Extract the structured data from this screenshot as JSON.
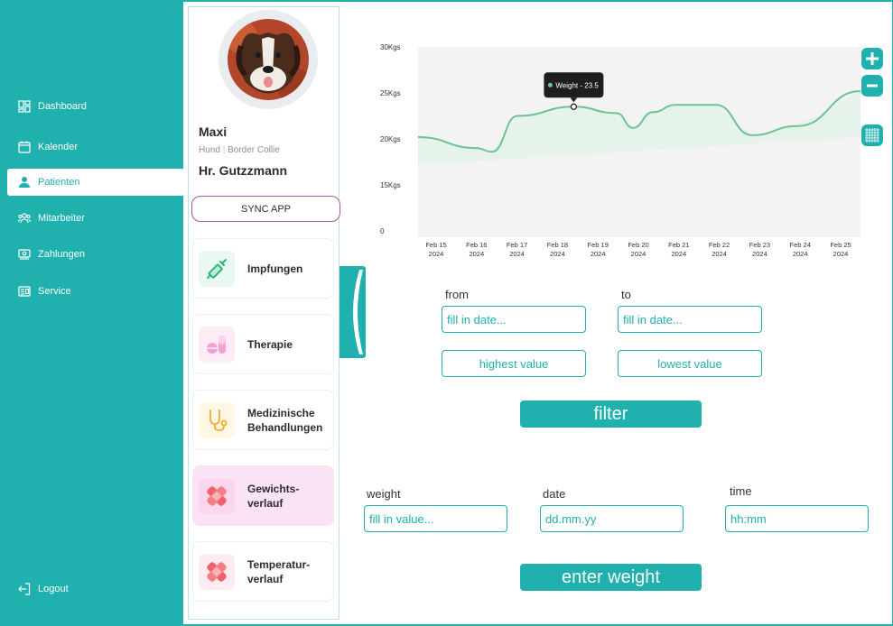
{
  "nav": {
    "items": [
      {
        "label": "Dashboard",
        "icon": "dashboard-icon"
      },
      {
        "label": "Kalender",
        "icon": "calendar-icon"
      },
      {
        "label": "Patienten",
        "icon": "patient-icon",
        "active": true
      },
      {
        "label": "Mitarbeiter",
        "icon": "staff-icon"
      },
      {
        "label": "Zahlungen",
        "icon": "payment-icon"
      },
      {
        "label": "Service",
        "icon": "service-icon"
      }
    ],
    "logout": "Logout"
  },
  "patient": {
    "name": "Maxi",
    "species": "Hund",
    "separator": "|",
    "breed": "Border Collie",
    "owner": "Hr. Gutzzmann",
    "sync_label": "SYNC APP"
  },
  "menu_cards": [
    {
      "label": "Impfungen",
      "icon": "syringe-icon"
    },
    {
      "label": "Therapie",
      "icon": "pills-icon"
    },
    {
      "label": "Medizinische\nBehandlungen",
      "icon": "stethoscope-icon"
    },
    {
      "label": "Gewichts-\nverlauf",
      "icon": "bandage-icon",
      "active": true
    },
    {
      "label": "Temperatur-\nverlauf",
      "icon": "bandage-icon"
    }
  ],
  "colors": {
    "accent": "#20b0ad",
    "line": "#6cc38f",
    "active_card": "#fae3f4",
    "sync_border": "#a55aa0"
  },
  "chart_data": {
    "type": "line",
    "series": [
      {
        "name": "Weight",
        "points": [
          {
            "x": "Feb 15 2024",
            "y": 20.2
          },
          {
            "x": "Feb 16 2024",
            "y": 19.0
          },
          {
            "x": "Feb 16.5",
            "y": 18.6
          },
          {
            "x": "Feb 17 2024",
            "y": 22.5
          },
          {
            "x": "Feb 18 2024",
            "y": 23.5
          },
          {
            "x": "Feb 19 2024",
            "y": 22.8
          },
          {
            "x": "Feb 19.5",
            "y": 21.2
          },
          {
            "x": "Feb 20 2024",
            "y": 22.9
          },
          {
            "x": "Feb 21 2024",
            "y": 23.7
          },
          {
            "x": "Feb 22 2024",
            "y": 23.7
          },
          {
            "x": "Feb 23 2024",
            "y": 20.4
          },
          {
            "x": "Feb 24 2024",
            "y": 21.4
          },
          {
            "x": "Feb 25 2024",
            "y": 25.2
          }
        ]
      }
    ],
    "ylim": [
      0,
      30
    ],
    "yticks": [
      "30Kgs",
      "25Kgs",
      "20Kgs",
      "15Kgs",
      "0"
    ],
    "xticks": [
      {
        "d": "Feb 15",
        "y": "2024"
      },
      {
        "d": "Feb 16",
        "y": "2024"
      },
      {
        "d": "Feb 17",
        "y": "2024"
      },
      {
        "d": "Feb 18",
        "y": "2024"
      },
      {
        "d": "Feb 19",
        "y": "2024"
      },
      {
        "d": "Feb 20",
        "y": "2024"
      },
      {
        "d": "Feb 21",
        "y": "2024"
      },
      {
        "d": "Feb 22",
        "y": "2024"
      },
      {
        "d": "Feb 23",
        "y": "2024"
      },
      {
        "d": "Feb 24",
        "y": "2024"
      },
      {
        "d": "Feb 25",
        "y": "2024"
      }
    ],
    "tooltip": "Weight - 23.5"
  },
  "filter": {
    "from_label": "from",
    "to_label": "to",
    "from_placeholder": "fill in date...",
    "to_placeholder": "fill in date...",
    "highest_label": "highest value",
    "lowest_label": "lowest value",
    "filter_label": "filter"
  },
  "entry": {
    "weight_label": "weight",
    "date_label": "date",
    "time_label": "time",
    "weight_placeholder": "fill in value...",
    "date_placeholder": "dd.mm.yy",
    "time_placeholder": "hh:mm",
    "submit_label": "enter weight"
  }
}
